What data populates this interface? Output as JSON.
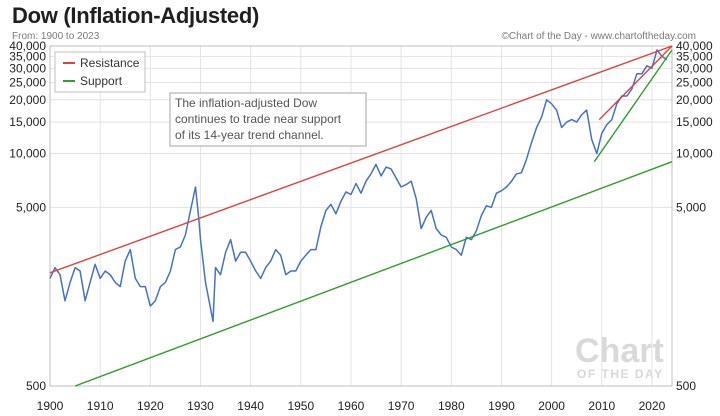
{
  "chart_data": {
    "type": "line",
    "title": "Dow (Inflation-Adjusted)",
    "subtitle": "From: 1900 to 2023",
    "credit": "©Chart of the Day - www.chartoftheday.com",
    "xlim": [
      1900,
      2024
    ],
    "ylim": [
      500,
      40000
    ],
    "yscale": "log",
    "grid": true,
    "legend_position": "top-left",
    "x_ticks": [
      1900,
      1910,
      1920,
      1930,
      1940,
      1950,
      1960,
      1970,
      1980,
      1990,
      2000,
      2010,
      2020
    ],
    "y_ticks": [
      {
        "value": 500,
        "label": "500"
      },
      {
        "value": 5000,
        "label": "5,000"
      },
      {
        "value": 10000,
        "label": "10,000"
      },
      {
        "value": 15000,
        "label": "15,000"
      },
      {
        "value": 20000,
        "label": "20,000"
      },
      {
        "value": 25000,
        "label": "25,000"
      },
      {
        "value": 30000,
        "label": "30,000"
      },
      {
        "value": 35000,
        "label": "35,000"
      },
      {
        "value": 40000,
        "label": "40,000"
      }
    ],
    "series": [
      {
        "color": "#4472c4",
        "x": [
          1900,
          1901,
          1902,
          1903,
          1904,
          1905,
          1906,
          1907,
          1908,
          1909,
          1910,
          1911,
          1912,
          1913,
          1914,
          1915,
          1916,
          1917,
          1918,
          1919,
          1920,
          1921,
          1922,
          1923,
          1924,
          1925,
          1926,
          1927,
          1928,
          1929,
          1929.7,
          1930,
          1931,
          1932.5,
          1933,
          1934,
          1935,
          1936,
          1937,
          1938,
          1939,
          1940,
          1941,
          1942,
          1943,
          1944,
          1945,
          1946,
          1947,
          1948,
          1949,
          1950,
          1951,
          1952,
          1953,
          1954,
          1955,
          1956,
          1957,
          1958,
          1959,
          1960,
          1961,
          1962,
          1963,
          1964,
          1965,
          1966,
          1967,
          1968,
          1969,
          1970,
          1971,
          1972,
          1973,
          1974,
          1975,
          1976,
          1977,
          1978,
          1979,
          1980,
          1981,
          1982,
          1983,
          1984,
          1985,
          1986,
          1987,
          1988,
          1989,
          1990,
          1991,
          1992,
          1993,
          1994,
          1995,
          1996,
          1997,
          1998,
          1999,
          2000,
          2001,
          2002,
          2003,
          2004,
          2005,
          2006,
          2007,
          2008,
          2009,
          2010,
          2011,
          2012,
          2013,
          2014,
          2015,
          2016,
          2017,
          2018,
          2019,
          2020,
          2021,
          2022,
          2023
        ],
        "y": [
          2000,
          2300,
          2100,
          1500,
          1900,
          2300,
          2200,
          1500,
          1900,
          2400,
          2000,
          2200,
          2100,
          1900,
          1800,
          2500,
          2900,
          2000,
          1800,
          1800,
          1400,
          1500,
          1800,
          1900,
          2200,
          2900,
          3000,
          3500,
          4800,
          6500,
          4200,
          3300,
          1900,
          1150,
          2300,
          2100,
          2800,
          3300,
          2500,
          2800,
          2800,
          2500,
          2200,
          2000,
          2300,
          2500,
          2900,
          2700,
          2100,
          2200,
          2200,
          2500,
          2700,
          2900,
          2900,
          3900,
          4800,
          5200,
          4600,
          5400,
          6100,
          5900,
          6800,
          6000,
          7000,
          7700,
          8700,
          7500,
          8400,
          8200,
          7300,
          6500,
          6700,
          7000,
          5600,
          3800,
          4400,
          4800,
          3800,
          3500,
          3400,
          3000,
          2900,
          2700,
          3400,
          3300,
          3700,
          4500,
          5100,
          5000,
          6000,
          6200,
          6500,
          7000,
          7700,
          7800,
          9300,
          11500,
          14000,
          16000,
          20000,
          19000,
          17500,
          14000,
          15000,
          15500,
          15000,
          16500,
          17500,
          12000,
          10000,
          13000,
          14500,
          15500,
          19000,
          21000,
          21000,
          23000,
          28000,
          28000,
          31000,
          30000,
          38000,
          35000,
          33500
        ]
      },
      {
        "name": "Resistance",
        "color": "#e0413e",
        "x": [
          1900,
          2024
        ],
        "y": [
          2150,
          40000
        ]
      },
      {
        "name": "Support",
        "color": "#2e9e2e",
        "x": [
          1905,
          2024
        ],
        "y": [
          500,
          9000
        ]
      },
      {
        "color": "#e0413e",
        "x": [
          2009.5,
          2024
        ],
        "y": [
          15500,
          40000
        ]
      },
      {
        "color": "#2e9e2e",
        "x": [
          2008.5,
          2024
        ],
        "y": [
          9000,
          38000
        ]
      }
    ],
    "legend": [
      {
        "label": "Resistance",
        "color": "#e0413e"
      },
      {
        "label": "Support",
        "color": "#2e9e2e"
      }
    ],
    "annotations": [
      {
        "lines": [
          "The inflation-adjusted Dow",
          "continues to trade near support",
          "of its 14-year trend channel."
        ]
      }
    ],
    "watermark": {
      "line1": "Chart",
      "line2": "OF THE DAY"
    }
  }
}
